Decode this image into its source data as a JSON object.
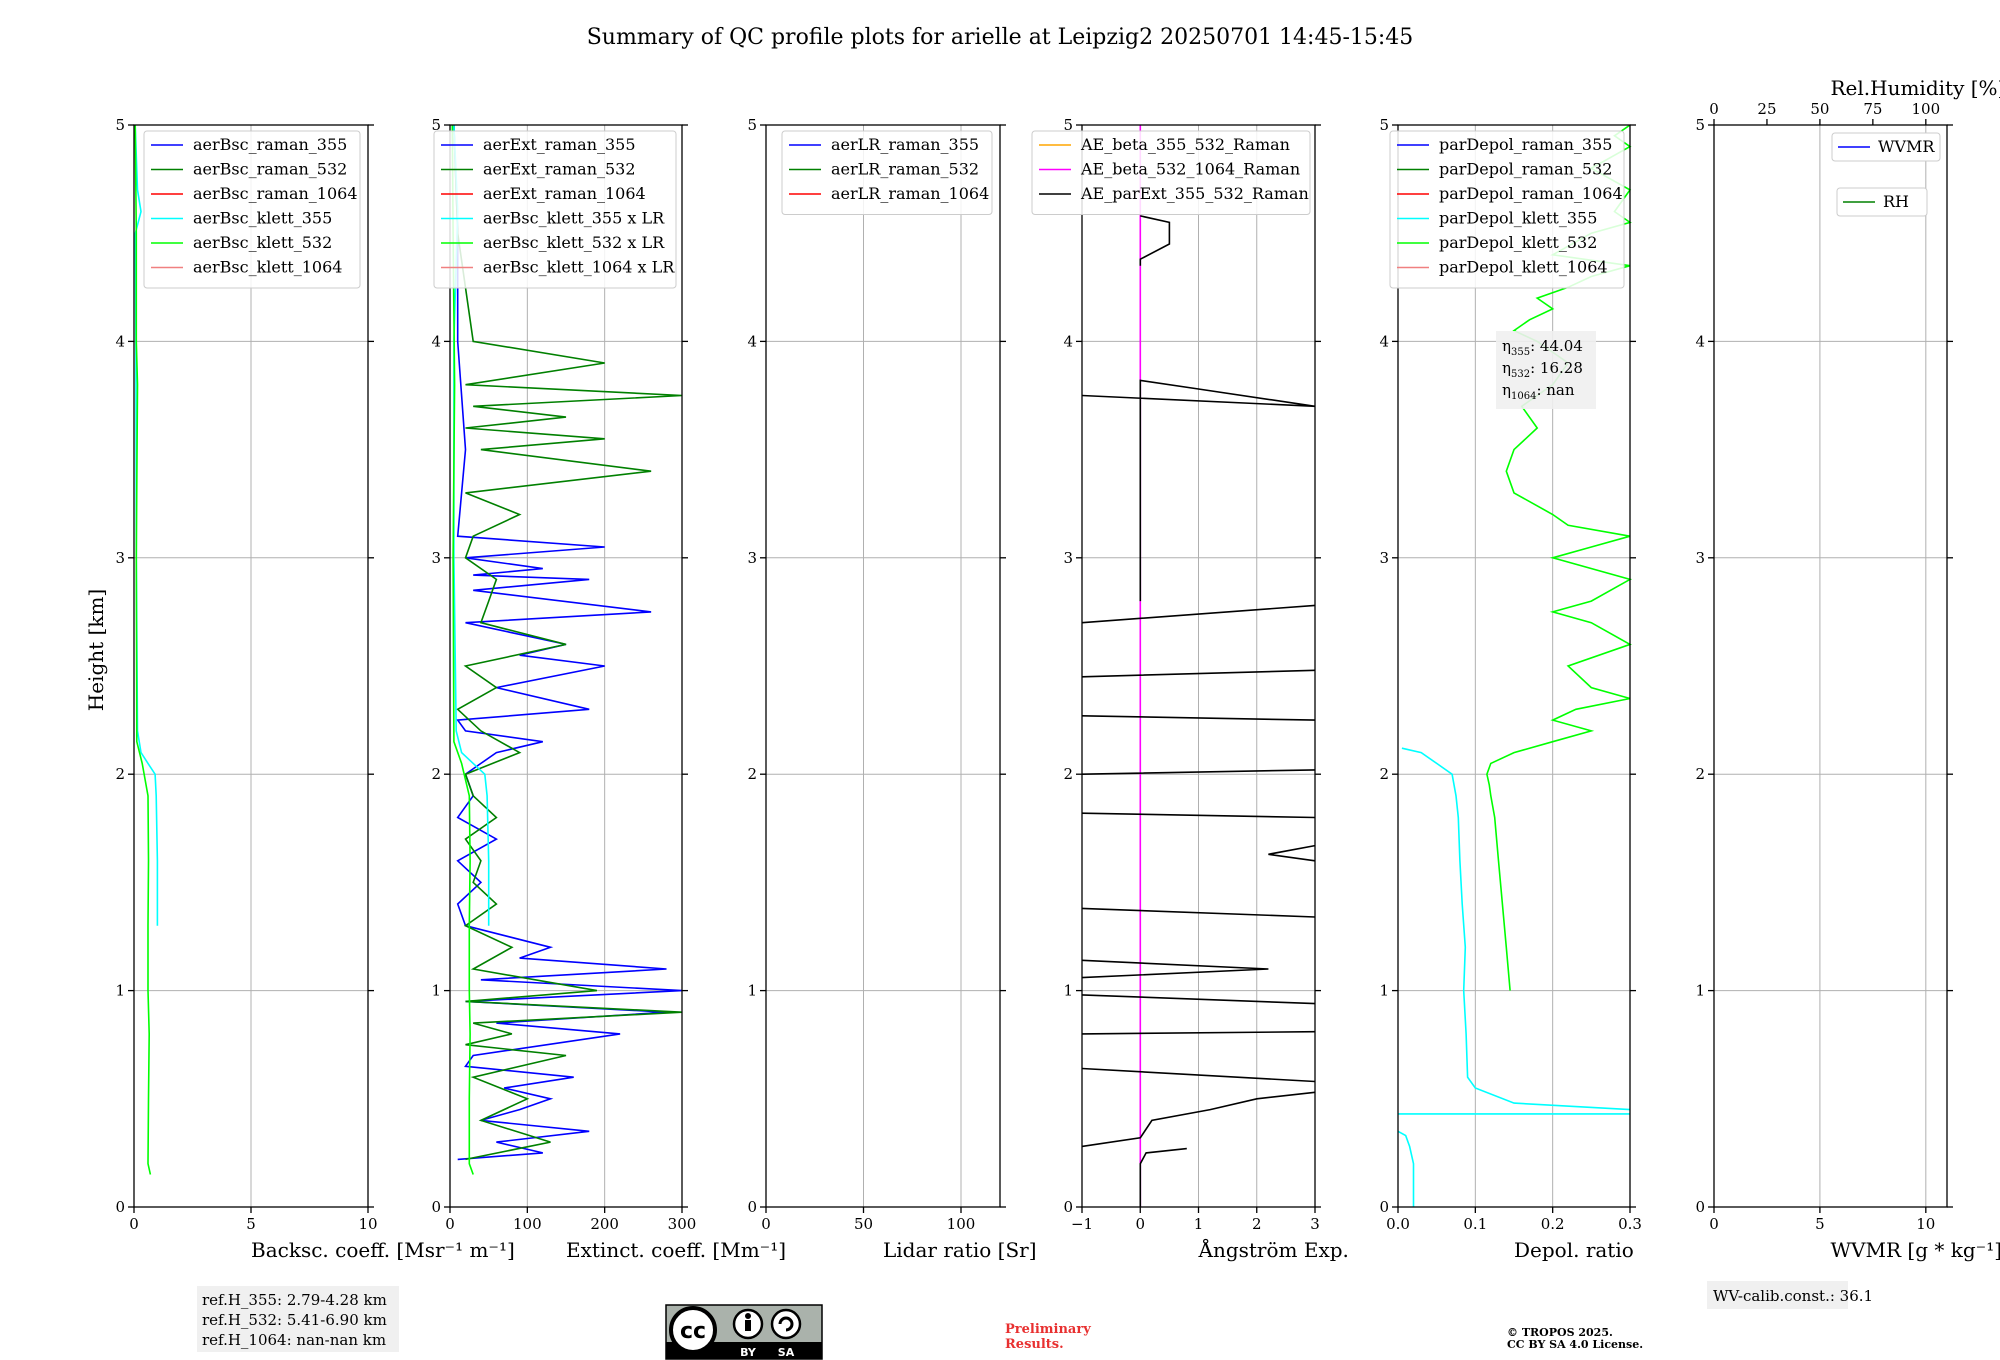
{
  "figure": {
    "title": "Summary of QC profile plots for arielle at Leipzig2 20250701 14:45-15:45",
    "ylabel": "Height [km]",
    "ref_heights": [
      "ref.H_355: 2.79-4.28 km",
      "ref.H_532: 5.41-6.90 km",
      "ref.H_1064: nan-nan km"
    ],
    "eta": [
      "η355: 44.04",
      "η532: 16.28",
      "η1064: nan"
    ],
    "eta_parts": [
      {
        "sym": "η",
        "sub": "355",
        "val": ": 44.04"
      },
      {
        "sym": "η",
        "sub": "532",
        "val": ": 16.28"
      },
      {
        "sym": "η",
        "sub": "1064",
        "val": ": nan"
      }
    ],
    "wv_calib": "WV-calib.const.: 36.1",
    "preliminary": [
      "Preliminary",
      "Results."
    ],
    "copyright": [
      "© TROPOS 2025.",
      "CC BY SA 4.0 License."
    ],
    "license_badge": {
      "cc": "cc",
      "by": "BY",
      "sa": "SA"
    }
  },
  "colors": {
    "ch355": "#0000ff",
    "ch532": "#008000",
    "ch1064": "#ff0000",
    "klett355": "#00ffff",
    "klett532": "#00ff00",
    "klett1064": "#f08080",
    "ae1": "#ffa500",
    "ae2": "#ff00ff",
    "ae3": "#000000",
    "grid": "#b0b0b0",
    "infobox": "#f0f0f0",
    "preliminary": "#e83030"
  },
  "chart_data": [
    {
      "type": "line",
      "id": "bsc",
      "xlabel": "Backsc. coeff. [Msr⁻¹ m⁻¹]",
      "ylabel": "Height [km]",
      "xlim": [
        0,
        10
      ],
      "ylim": [
        0,
        5
      ],
      "xticks": [
        0,
        5,
        10
      ],
      "xticklabels": [
        "0",
        "5",
        "10"
      ],
      "yticks": [
        0,
        1,
        2,
        3,
        4,
        5
      ],
      "grid": true,
      "legend": "top-right",
      "legend_entries": [
        "aerBsc_raman_355",
        "aerBsc_raman_532",
        "aerBsc_raman_1064",
        "aerBsc_klett_355",
        "aerBsc_klett_532",
        "aerBsc_klett_1064"
      ],
      "series": [
        {
          "name": "aerBsc_klett_355",
          "color": "klett355",
          "x": [
            1.0,
            1.0,
            0.95,
            0.9,
            0.6,
            0.3,
            0.15,
            0.1,
            0.08,
            0.06,
            0.3,
            0.15,
            0.05
          ],
          "y": [
            1.3,
            1.6,
            1.9,
            2.0,
            2.05,
            2.1,
            2.2,
            3.0,
            4.0,
            4.5,
            4.6,
            4.7,
            5.0
          ]
        },
        {
          "name": "aerBsc_klett_532",
          "color": "klett532",
          "x": [
            0.7,
            0.6,
            0.62,
            0.65,
            0.6,
            0.6,
            0.62,
            0.6,
            0.35,
            0.12,
            0.1,
            0.15,
            0.1,
            0.1,
            0.05
          ],
          "y": [
            0.15,
            0.2,
            0.5,
            0.8,
            1.0,
            1.3,
            1.6,
            1.9,
            2.05,
            2.15,
            3.0,
            3.8,
            4.0,
            4.5,
            5.0
          ]
        }
      ]
    },
    {
      "type": "line",
      "id": "ext",
      "xlabel": "Extinct. coeff. [Mm⁻¹]",
      "ylabel": "Height [km]",
      "xlim": [
        0,
        300
      ],
      "ylim": [
        0,
        5
      ],
      "xticks": [
        0,
        100,
        200,
        300
      ],
      "xticklabels": [
        "0",
        "100",
        "200",
        "300"
      ],
      "yticks": [
        0,
        1,
        2,
        3,
        4,
        5
      ],
      "grid": true,
      "legend": "top-right",
      "legend_entries": [
        "aerExt_raman_355",
        "aerExt_raman_532",
        "aerExt_raman_1064",
        "aerBsc_klett_355 x LR",
        "aerBsc_klett_532 x LR",
        "aerBsc_klett_1064 x LR"
      ],
      "series": [
        {
          "name": "aerExt_raman_355",
          "color": "ch355",
          "x": [
            10,
            120,
            60,
            180,
            40,
            90,
            130,
            70,
            160,
            20,
            30,
            220,
            60,
            280,
            20,
            300,
            40,
            280,
            90,
            130,
            20,
            10,
            40,
            10,
            60,
            10,
            30,
            20,
            40,
            60,
            120,
            20,
            10,
            180,
            60,
            200,
            90,
            150,
            20,
            260,
            30,
            180,
            30,
            120,
            20,
            200,
            10,
            20,
            10,
            10,
            5
          ],
          "y": [
            0.22,
            0.25,
            0.3,
            0.35,
            0.4,
            0.45,
            0.5,
            0.55,
            0.6,
            0.65,
            0.7,
            0.8,
            0.85,
            0.9,
            0.95,
            1.0,
            1.05,
            1.1,
            1.15,
            1.2,
            1.3,
            1.4,
            1.5,
            1.6,
            1.7,
            1.8,
            1.9,
            2.0,
            2.05,
            2.1,
            2.15,
            2.2,
            2.25,
            2.3,
            2.4,
            2.5,
            2.55,
            2.6,
            2.7,
            2.75,
            2.85,
            2.9,
            2.92,
            2.95,
            3.0,
            3.05,
            3.1,
            3.5,
            4.0,
            4.5,
            5.0
          ]
        },
        {
          "name": "aerExt_raman_532",
          "color": "ch532",
          "x": [
            20,
            130,
            40,
            100,
            30,
            150,
            20,
            80,
            30,
            300,
            20,
            190,
            30,
            80,
            20,
            60,
            30,
            40,
            20,
            60,
            30,
            20,
            90,
            40,
            10,
            60,
            20,
            150,
            40,
            50,
            60,
            20,
            30,
            90,
            20,
            260,
            40,
            200,
            20,
            150,
            30,
            300,
            20,
            200,
            30,
            10,
            5
          ],
          "y": [
            0.22,
            0.3,
            0.4,
            0.5,
            0.6,
            0.7,
            0.75,
            0.8,
            0.85,
            0.9,
            0.95,
            1.0,
            1.1,
            1.2,
            1.3,
            1.4,
            1.5,
            1.6,
            1.7,
            1.8,
            1.9,
            2.0,
            2.1,
            2.2,
            2.3,
            2.4,
            2.5,
            2.6,
            2.7,
            2.8,
            2.9,
            3.0,
            3.1,
            3.2,
            3.3,
            3.4,
            3.5,
            3.55,
            3.6,
            3.65,
            3.7,
            3.75,
            3.8,
            3.9,
            4.0,
            4.5,
            5.0
          ]
        },
        {
          "name": "aerBsc_klett_355 x LR",
          "color": "klett355",
          "x": [
            50,
            50,
            48,
            45,
            30,
            15,
            8,
            5,
            5,
            10,
            5
          ],
          "y": [
            1.3,
            1.6,
            1.9,
            2.0,
            2.05,
            2.1,
            2.2,
            3.0,
            4.0,
            4.6,
            5.0
          ]
        },
        {
          "name": "aerBsc_klett_532 x LR",
          "color": "klett532",
          "x": [
            30,
            25,
            25,
            26,
            25,
            25,
            26,
            25,
            15,
            5,
            4,
            6,
            4,
            3
          ],
          "y": [
            0.15,
            0.2,
            0.5,
            0.8,
            1.0,
            1.3,
            1.6,
            1.9,
            2.05,
            2.15,
            3.0,
            3.8,
            4.5,
            5.0
          ]
        }
      ]
    },
    {
      "type": "line",
      "id": "lr",
      "xlabel": "Lidar ratio [Sr]",
      "ylabel": "Height [km]",
      "xlim": [
        0,
        120
      ],
      "ylim": [
        0,
        5
      ],
      "xticks": [
        0,
        50,
        100
      ],
      "xticklabels": [
        "0",
        "50",
        "100"
      ],
      "yticks": [
        0,
        1,
        2,
        3,
        4,
        5
      ],
      "grid": true,
      "legend": "top-right",
      "legend_entries": [
        "aerLR_raman_355",
        "aerLR_raman_532",
        "aerLR_raman_1064"
      ],
      "series": []
    },
    {
      "type": "line",
      "id": "ae",
      "xlabel": "Ångström Exp.",
      "ylabel": "Height [km]",
      "xlim": [
        -1,
        3
      ],
      "ylim": [
        0,
        5
      ],
      "xticks": [
        -1,
        0,
        1,
        2,
        3
      ],
      "xticklabels": [
        "−1",
        "0",
        "1",
        "2",
        "3"
      ],
      "yticks": [
        0,
        1,
        2,
        3,
        4,
        5
      ],
      "grid": true,
      "legend": "top-right",
      "legend_entries": [
        "AE_beta_355_532_Raman",
        "AE_beta_532_1064_Raman",
        "AE_parExt_355_532_Raman"
      ],
      "series": [
        {
          "name": "AE_beta_532_1064_Raman",
          "color": "ae2",
          "x": [
            0,
            0
          ],
          "y": [
            0,
            5
          ]
        },
        {
          "name": "AE_parExt_355_532_Raman",
          "color": "ae3",
          "x": [
            0,
            0,
            0.1,
            0.8,
            null,
            -1,
            0,
            0.2,
            1.2,
            2,
            3,
            null,
            -1,
            3,
            null,
            -1,
            3,
            null,
            -1,
            3,
            null,
            -1,
            2.2,
            -1,
            null,
            -1,
            3,
            null,
            -1,
            3,
            null,
            3,
            2.2,
            3,
            null,
            -1,
            3,
            null,
            -1,
            3,
            null,
            -1,
            3,
            null,
            -1,
            3,
            null,
            -1,
            3,
            null,
            0,
            0,
            1,
            3,
            null,
            0,
            0,
            0.5,
            0.5,
            0
          ],
          "y": [
            0,
            0.2,
            0.25,
            0.27,
            null,
            0.28,
            0.32,
            0.4,
            0.45,
            0.5,
            0.53,
            null,
            0.64,
            0.58,
            null,
            0.8,
            0.81,
            null,
            0.98,
            0.94,
            null,
            1.06,
            1.1,
            1.14,
            null,
            1.38,
            1.34,
            null,
            1.82,
            1.8,
            null,
            1.6,
            1.63,
            1.67,
            null,
            2.0,
            2.02,
            null,
            2.27,
            2.25,
            null,
            2.45,
            2.48,
            null,
            2.7,
            2.78,
            null,
            3.75,
            3.7,
            null,
            2.8,
            3.82,
            3.78,
            3.7,
            null,
            4.35,
            4.38,
            4.45,
            4.55,
            4.58
          ]
        }
      ]
    },
    {
      "type": "line",
      "id": "depol",
      "xlabel": "Depol. ratio",
      "ylabel": "Height [km]",
      "xlim": [
        0,
        0.3
      ],
      "ylim": [
        0,
        5
      ],
      "xticks": [
        0,
        0.1,
        0.2,
        0.3
      ],
      "xticklabels": [
        "0.0",
        "0.1",
        "0.2",
        "0.3"
      ],
      "yticks": [
        0,
        1,
        2,
        3,
        4,
        5
      ],
      "grid": true,
      "legend": "top-right",
      "legend_entries": [
        "parDepol_raman_355",
        "parDepol_raman_532",
        "parDepol_raman_1064",
        "parDepol_klett_355",
        "parDepol_klett_532",
        "parDepol_klett_1064"
      ],
      "series": [
        {
          "name": "parDepol_klett_355",
          "color": "klett355",
          "x": [
            0.02,
            0.02,
            0.015,
            0.01,
            0,
            null,
            0,
            0.3,
            null,
            0.3,
            0.15,
            0.1,
            0.09,
            0.088,
            0.085,
            0.087,
            0.083,
            0.08,
            0.078,
            0.075,
            0.07,
            0.05,
            0.03,
            0.005
          ],
          "y": [
            0,
            0.2,
            0.28,
            0.33,
            0.35,
            null,
            0.43,
            0.43,
            null,
            0.45,
            0.48,
            0.55,
            0.6,
            0.8,
            1.0,
            1.2,
            1.4,
            1.6,
            1.8,
            1.9,
            2.0,
            2.05,
            2.1,
            2.12
          ]
        },
        {
          "name": "parDepol_klett_532",
          "color": "klett532",
          "x": [
            0.145,
            0.14,
            0.135,
            0.13,
            0.125,
            0.12,
            0.118,
            0.115,
            0.12,
            0.15,
            0.2,
            0.25,
            0.2,
            0.23,
            0.3,
            0.25,
            0.22,
            0.3,
            0.25,
            0.2,
            0.25,
            0.3,
            0.2,
            0.25,
            0.3,
            0.22,
            0.2,
            0.15,
            0.14,
            0.15,
            0.18,
            0.16,
            0.2,
            0.22,
            0.18,
            0.15,
            0.17,
            0.2,
            0.18,
            0.22,
            0.25,
            0.3,
            0.2,
            0.25,
            0.3,
            0.28,
            0.3,
            0.25,
            0.3,
            0.28,
            0.3
          ],
          "y": [
            1.0,
            1.2,
            1.4,
            1.6,
            1.8,
            1.9,
            1.95,
            2.0,
            2.05,
            2.1,
            2.15,
            2.2,
            2.25,
            2.3,
            2.35,
            2.4,
            2.5,
            2.6,
            2.7,
            2.75,
            2.8,
            2.9,
            3.0,
            3.05,
            3.1,
            3.15,
            3.2,
            3.3,
            3.4,
            3.5,
            3.6,
            3.7,
            3.8,
            3.9,
            4.0,
            4.05,
            4.1,
            4.15,
            4.2,
            4.25,
            4.3,
            4.35,
            4.4,
            4.5,
            4.55,
            4.6,
            4.7,
            4.8,
            4.9,
            4.95,
            5.0
          ]
        }
      ]
    },
    {
      "type": "line",
      "id": "wv",
      "xlabel": "WVMR [g * kg⁻¹]",
      "ylabel": "Height [km]",
      "xlim": [
        0,
        11
      ],
      "ylim": [
        0,
        5
      ],
      "xticks": [
        0,
        5,
        10
      ],
      "xticklabels": [
        "0",
        "5",
        "10"
      ],
      "yticks": [
        0,
        1,
        2,
        3,
        4,
        5
      ],
      "grid": true,
      "legend": "top-right",
      "top_axis": {
        "label": "Rel.Humidity [%]",
        "xlim": [
          0,
          110
        ],
        "ticks": [
          0,
          25,
          50,
          75,
          100
        ],
        "ticklabels": [
          "0",
          "25",
          "50",
          "75",
          "100"
        ]
      },
      "legend_entries": [
        "WVMR",
        "RH"
      ],
      "series": []
    }
  ]
}
